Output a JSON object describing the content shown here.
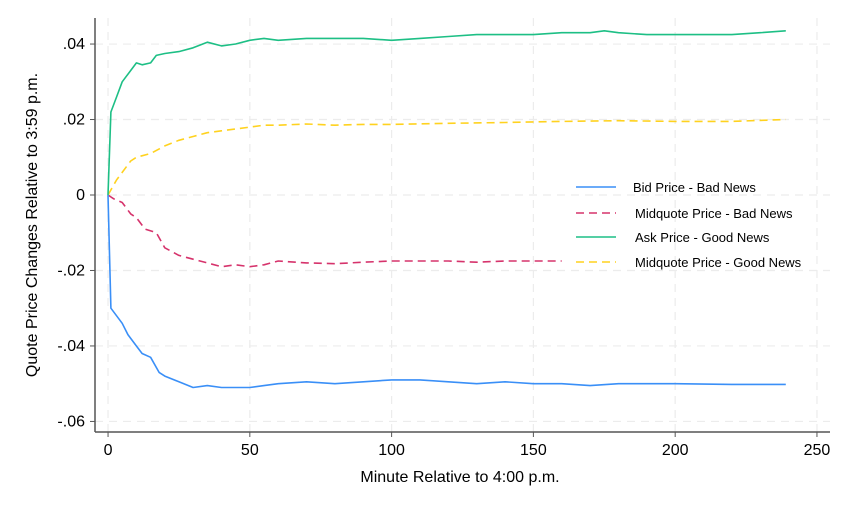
{
  "chart_data": {
    "type": "line",
    "title": "",
    "xlabel": "Minute Relative to 4:00 p.m.",
    "ylabel": "Quote Price Changes Relative to 3:59 p.m.",
    "xlim": [
      -4.6,
      254.6
    ],
    "ylim": [
      -0.0628,
      0.0469
    ],
    "grid": true,
    "legend_position": "center-right",
    "x_ticks": [
      0,
      50,
      100,
      150,
      200,
      250
    ],
    "x_tick_labels": [
      "0",
      "50",
      "100",
      "150",
      "200",
      "250"
    ],
    "y_ticks": [
      0.04,
      0.02,
      0,
      -0.02,
      -0.04,
      -0.06
    ],
    "y_tick_labels": [
      ".04",
      ".02",
      "0",
      "-.02",
      "-.04",
      "-.06"
    ],
    "series": [
      {
        "name": "Bid Price - Bad News",
        "color": "#3a8ff7",
        "dash": false,
        "x": [
          0,
          1,
          3,
          5,
          7,
          10,
          12,
          15,
          18,
          20,
          25,
          30,
          35,
          40,
          45,
          50,
          55,
          60,
          70,
          80,
          90,
          100,
          110,
          120,
          130,
          140,
          150,
          160,
          170,
          180,
          200,
          220,
          239
        ],
        "y": [
          0,
          -0.03,
          -0.032,
          -0.034,
          -0.037,
          -0.04,
          -0.042,
          -0.043,
          -0.047,
          -0.048,
          -0.0495,
          -0.051,
          -0.0505,
          -0.051,
          -0.051,
          -0.051,
          -0.0505,
          -0.05,
          -0.0495,
          -0.05,
          -0.0495,
          -0.049,
          -0.049,
          -0.0495,
          -0.05,
          -0.0495,
          -0.05,
          -0.05,
          -0.0505,
          -0.05,
          -0.05,
          -0.0502,
          -0.0502
        ]
      },
      {
        "name": "Midquote Price - Bad News",
        "color": "#d6336c",
        "dash": true,
        "x": [
          0,
          2,
          5,
          8,
          10,
          13,
          17,
          20,
          25,
          30,
          35,
          40,
          45,
          50,
          55,
          60,
          70,
          80,
          90,
          100,
          110,
          120,
          130,
          140,
          150,
          160
        ],
        "y": [
          0,
          -0.001,
          -0.002,
          -0.005,
          -0.006,
          -0.009,
          -0.01,
          -0.014,
          -0.016,
          -0.017,
          -0.018,
          -0.019,
          -0.0185,
          -0.019,
          -0.0185,
          -0.0175,
          -0.018,
          -0.0182,
          -0.0178,
          -0.0175,
          -0.0175,
          -0.0175,
          -0.0178,
          -0.0175,
          -0.0175,
          -0.0175
        ]
      },
      {
        "name": "Ask Price - Good News",
        "color": "#1dbf85",
        "dash": false,
        "x": [
          0,
          1,
          3,
          5,
          8,
          10,
          12,
          15,
          17,
          20,
          25,
          30,
          35,
          40,
          45,
          50,
          55,
          60,
          70,
          80,
          90,
          100,
          110,
          120,
          130,
          140,
          150,
          160,
          170,
          175,
          180,
          190,
          200,
          210,
          220,
          230,
          239
        ],
        "y": [
          0,
          0.022,
          0.026,
          0.03,
          0.033,
          0.035,
          0.0345,
          0.035,
          0.037,
          0.0375,
          0.038,
          0.039,
          0.0405,
          0.0395,
          0.04,
          0.041,
          0.0415,
          0.041,
          0.0415,
          0.0415,
          0.0415,
          0.041,
          0.0415,
          0.042,
          0.0425,
          0.0425,
          0.0425,
          0.043,
          0.043,
          0.0435,
          0.043,
          0.0425,
          0.0425,
          0.0425,
          0.0425,
          0.043,
          0.0435
        ]
      },
      {
        "name": "Midquote Price - Good News",
        "color": "#ffd21f",
        "dash": true,
        "x": [
          0,
          3,
          5,
          8,
          10,
          15,
          20,
          25,
          30,
          35,
          40,
          45,
          50,
          55,
          60,
          70,
          80,
          90,
          100,
          120,
          140,
          160,
          180,
          200,
          220,
          239
        ],
        "y": [
          0,
          0.004,
          0.006,
          0.009,
          0.01,
          0.011,
          0.013,
          0.0145,
          0.0155,
          0.0165,
          0.017,
          0.0175,
          0.018,
          0.0185,
          0.0185,
          0.0188,
          0.0185,
          0.0187,
          0.0187,
          0.019,
          0.0192,
          0.0195,
          0.0197,
          0.0195,
          0.0195,
          0.02
        ]
      }
    ]
  }
}
